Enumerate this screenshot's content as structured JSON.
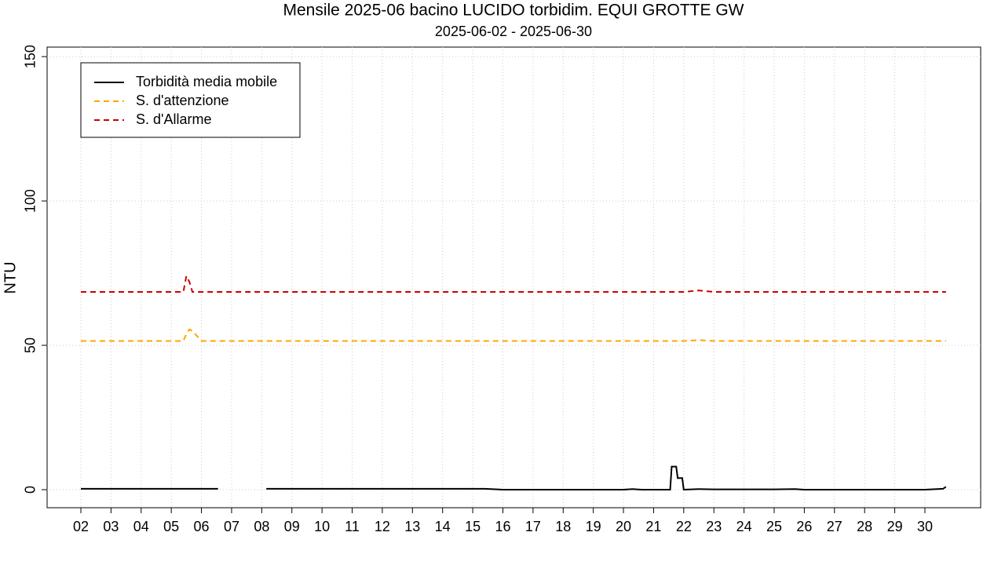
{
  "chart_data": {
    "type": "line",
    "title": "Mensile 2025-06 bacino LUCIDO torbidim. EQUI GROTTE GW",
    "subtitle": "2025-06-02 - 2025-06-30",
    "y_label": "NTU",
    "x": [
      2,
      3,
      4,
      5,
      5.4,
      5.5,
      5.6,
      5.7,
      6,
      6.55,
      6.6,
      8.1,
      8.15,
      9,
      10,
      11,
      12,
      13,
      14,
      15,
      15.4,
      16,
      17,
      18,
      19,
      20,
      20.3,
      20.6,
      21,
      21.55,
      21.6,
      21.75,
      21.8,
      21.95,
      22,
      22.5,
      23,
      24,
      25,
      25.7,
      26,
      27,
      28,
      29,
      30,
      30.6,
      30.7
    ],
    "series": [
      {
        "name": "Torbidità media mobile",
        "color": "#000000",
        "linestyle": "solid",
        "values": [
          0.3,
          0.3,
          0.3,
          0.3,
          0.3,
          0.3,
          0.3,
          0.3,
          0.3,
          0.3,
          null,
          null,
          0.3,
          0.3,
          0.3,
          0.3,
          0.3,
          0.3,
          0.3,
          0.3,
          0.3,
          0,
          0,
          0,
          0,
          0,
          0.2,
          0,
          0,
          0,
          8,
          8,
          4,
          4,
          0,
          0.2,
          0.1,
          0.1,
          0.1,
          0.2,
          0,
          0,
          0,
          0,
          0,
          0.3,
          1
        ]
      },
      {
        "name": "S. d'attenzione",
        "color": "#ffa500",
        "linestyle": "dashed",
        "values": [
          51.5,
          51.5,
          51.5,
          51.5,
          51.5,
          54,
          55.5,
          55,
          51.5,
          51.5,
          51.5,
          51.5,
          51.5,
          51.5,
          51.5,
          51.5,
          51.5,
          51.5,
          51.5,
          51.5,
          51.5,
          51.5,
          51.5,
          51.5,
          51.5,
          51.5,
          51.5,
          51.5,
          51.5,
          51.5,
          51.5,
          51.5,
          51.5,
          51.5,
          51.5,
          51.8,
          51.5,
          51.5,
          51.5,
          51.5,
          51.5,
          51.5,
          51.5,
          51.5,
          51.5,
          51.5,
          51.5
        ]
      },
      {
        "name": "S. d'Allarme",
        "color": "#cd0000",
        "linestyle": "dashed",
        "values": [
          68.5,
          68.5,
          68.5,
          68.5,
          68.5,
          74,
          72,
          68.5,
          68.5,
          68.5,
          68.5,
          68.5,
          68.5,
          68.5,
          68.5,
          68.5,
          68.5,
          68.5,
          68.5,
          68.5,
          68.5,
          68.5,
          68.5,
          68.5,
          68.5,
          68.5,
          68.5,
          68.5,
          68.5,
          68.5,
          68.5,
          68.5,
          68.5,
          68.5,
          68.5,
          69,
          68.5,
          68.5,
          68.5,
          68.5,
          68.5,
          68.5,
          68.5,
          68.5,
          68.5,
          68.5,
          68.5
        ]
      }
    ],
    "xlim": [
      0.88,
      31.85
    ],
    "ylim": [
      -6.25,
      153.3
    ],
    "yticks": [
      0,
      50,
      100,
      150
    ],
    "xticks": [
      {
        "value": 2,
        "label": "02"
      },
      {
        "value": 3,
        "label": "03"
      },
      {
        "value": 4,
        "label": "04"
      },
      {
        "value": 5,
        "label": "05"
      },
      {
        "value": 6,
        "label": "06"
      },
      {
        "value": 7,
        "label": "07"
      },
      {
        "value": 8,
        "label": "08"
      },
      {
        "value": 9,
        "label": "09"
      },
      {
        "value": 10,
        "label": "10"
      },
      {
        "value": 11,
        "label": "11"
      },
      {
        "value": 12,
        "label": "12"
      },
      {
        "value": 13,
        "label": "13"
      },
      {
        "value": 14,
        "label": "14"
      },
      {
        "value": 15,
        "label": "15"
      },
      {
        "value": 16,
        "label": "16"
      },
      {
        "value": 17,
        "label": "17"
      },
      {
        "value": 18,
        "label": "18"
      },
      {
        "value": 19,
        "label": "19"
      },
      {
        "value": 20,
        "label": "20"
      },
      {
        "value": 21,
        "label": "21"
      },
      {
        "value": 22,
        "label": "22"
      },
      {
        "value": 23,
        "label": "23"
      },
      {
        "value": 24,
        "label": "24"
      },
      {
        "value": 25,
        "label": "25"
      },
      {
        "value": 26,
        "label": "26"
      },
      {
        "value": 27,
        "label": "27"
      },
      {
        "value": 28,
        "label": "28"
      },
      {
        "value": 29,
        "label": "29"
      },
      {
        "value": 30,
        "label": "30"
      }
    ],
    "grid": true,
    "legend": "top-left"
  }
}
